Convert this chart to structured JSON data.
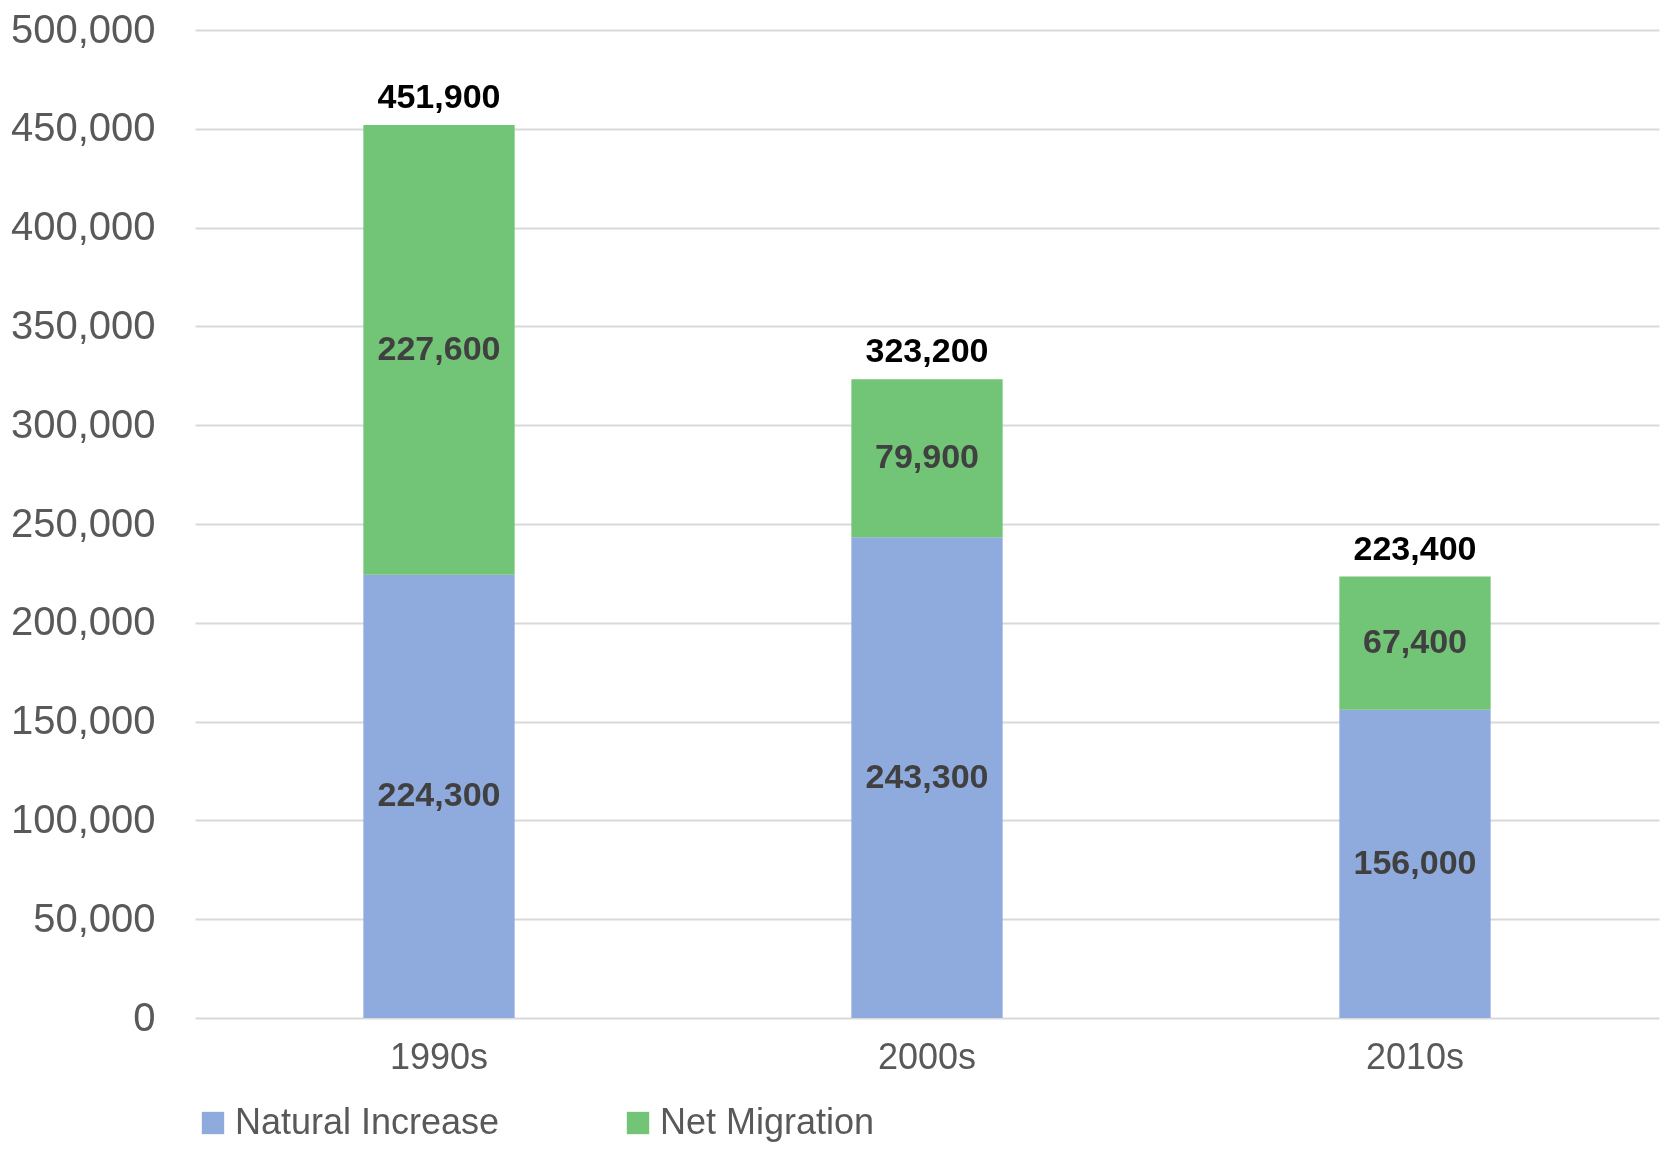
{
  "chart_data": {
    "type": "bar",
    "stacked": true,
    "categories": [
      "1990s",
      "2000s",
      "2010s"
    ],
    "series": [
      {
        "name": "Natural Increase",
        "color": "#8faadc",
        "values": [
          224300,
          243300,
          156000
        ],
        "value_labels": [
          "224,300",
          "243,300",
          "156,000"
        ]
      },
      {
        "name": "Net Migration",
        "color": "#72c476",
        "values": [
          227600,
          79900,
          67400
        ],
        "value_labels": [
          "227,600",
          "79,900",
          "67,400"
        ]
      }
    ],
    "ylim": [
      0,
      500000
    ],
    "yticks": [
      0,
      {
        "value": 50000,
        "label": "50,000"
      },
      {
        "value": 100000,
        "label": "100,000"
      },
      {
        "value": 150000,
        "label": "150,000"
      },
      {
        "value": 200000,
        "label": "200,000"
      },
      {
        "value": 250000,
        "label": "250,000"
      },
      {
        "value": 300000,
        "label": "300,000"
      },
      {
        "value": 350000,
        "label": "350,000"
      },
      {
        "value": 400000,
        "label": "400,000"
      },
      {
        "value": 450000,
        "label": "450,000"
      },
      {
        "value": 500000,
        "label": "500,000"
      }
    ],
    "grid": "y",
    "legend": "bottom",
    "totals": [
      "451,900",
      "323,200",
      "223,400"
    ]
  }
}
